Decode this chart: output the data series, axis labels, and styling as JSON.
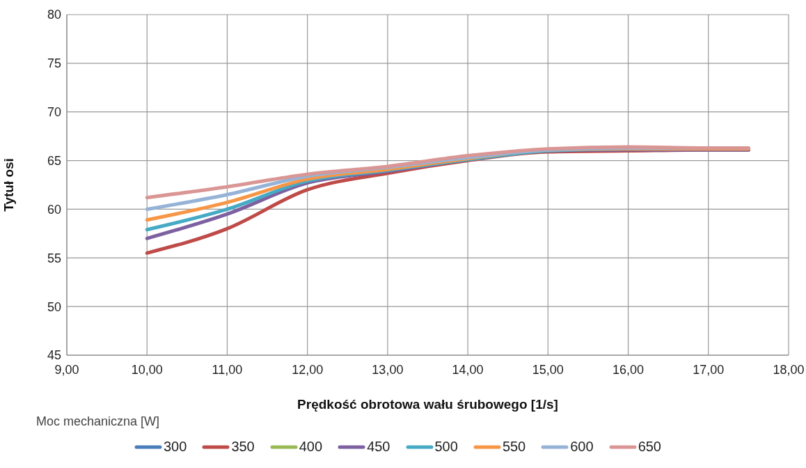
{
  "chart_data": {
    "type": "line",
    "xlabel": "Prędkość obrotowa wału śrubowego [1/s]",
    "ylabel": "Tytuł osi",
    "legend_title": "Moc mechaniczna [W]",
    "x": [
      10,
      11,
      12,
      13,
      14,
      15,
      16,
      17,
      17.5
    ],
    "series": [
      {
        "name": "300",
        "color": "#4a7ebb",
        "values": [
          null,
          null,
          null,
          null,
          null,
          null,
          null,
          null,
          null
        ]
      },
      {
        "name": "350",
        "color": "#be4b48",
        "values": [
          55.5,
          58.0,
          62.0,
          63.7,
          65.0,
          65.9,
          66.0,
          66.1,
          66.1
        ]
      },
      {
        "name": "400",
        "color": "#98b954",
        "values": [
          null,
          null,
          null,
          null,
          null,
          null,
          null,
          null,
          null
        ]
      },
      {
        "name": "450",
        "color": "#7d60a0",
        "values": [
          57.0,
          59.5,
          62.7,
          63.9,
          65.1,
          66.0,
          66.1,
          66.1,
          66.1
        ]
      },
      {
        "name": "500",
        "color": "#46aac5",
        "values": [
          57.9,
          60.0,
          62.9,
          64.0,
          65.1,
          66.0,
          66.2,
          66.2,
          66.2
        ]
      },
      {
        "name": "550",
        "color": "#f79646",
        "values": [
          58.9,
          60.7,
          63.1,
          64.1,
          65.2,
          66.1,
          66.2,
          66.2,
          66.2
        ]
      },
      {
        "name": "600",
        "color": "#95b3d7",
        "values": [
          60.0,
          61.5,
          63.4,
          64.3,
          65.3,
          66.1,
          66.3,
          66.3,
          66.3
        ]
      },
      {
        "name": "650",
        "color": "#d99694",
        "values": [
          61.2,
          62.3,
          63.6,
          64.4,
          65.5,
          66.2,
          66.4,
          66.3,
          66.3
        ]
      }
    ],
    "xlim": [
      9,
      18
    ],
    "xticks": [
      {
        "value": 9,
        "label": "9,00"
      },
      {
        "value": 10,
        "label": "10,00"
      },
      {
        "value": 11,
        "label": "11,00"
      },
      {
        "value": 12,
        "label": "12,00"
      },
      {
        "value": 13,
        "label": "13,00"
      },
      {
        "value": 14,
        "label": "14,00"
      },
      {
        "value": 15,
        "label": "15,00"
      },
      {
        "value": 16,
        "label": "16,00"
      },
      {
        "value": 17,
        "label": "17,00"
      },
      {
        "value": 18,
        "label": "18,00"
      }
    ],
    "ylim": [
      45,
      80
    ],
    "yticks": [
      45,
      50,
      55,
      60,
      65,
      70,
      75,
      80
    ],
    "grid": true,
    "legend": "bottom",
    "marker": "none",
    "line_style": "solid"
  }
}
